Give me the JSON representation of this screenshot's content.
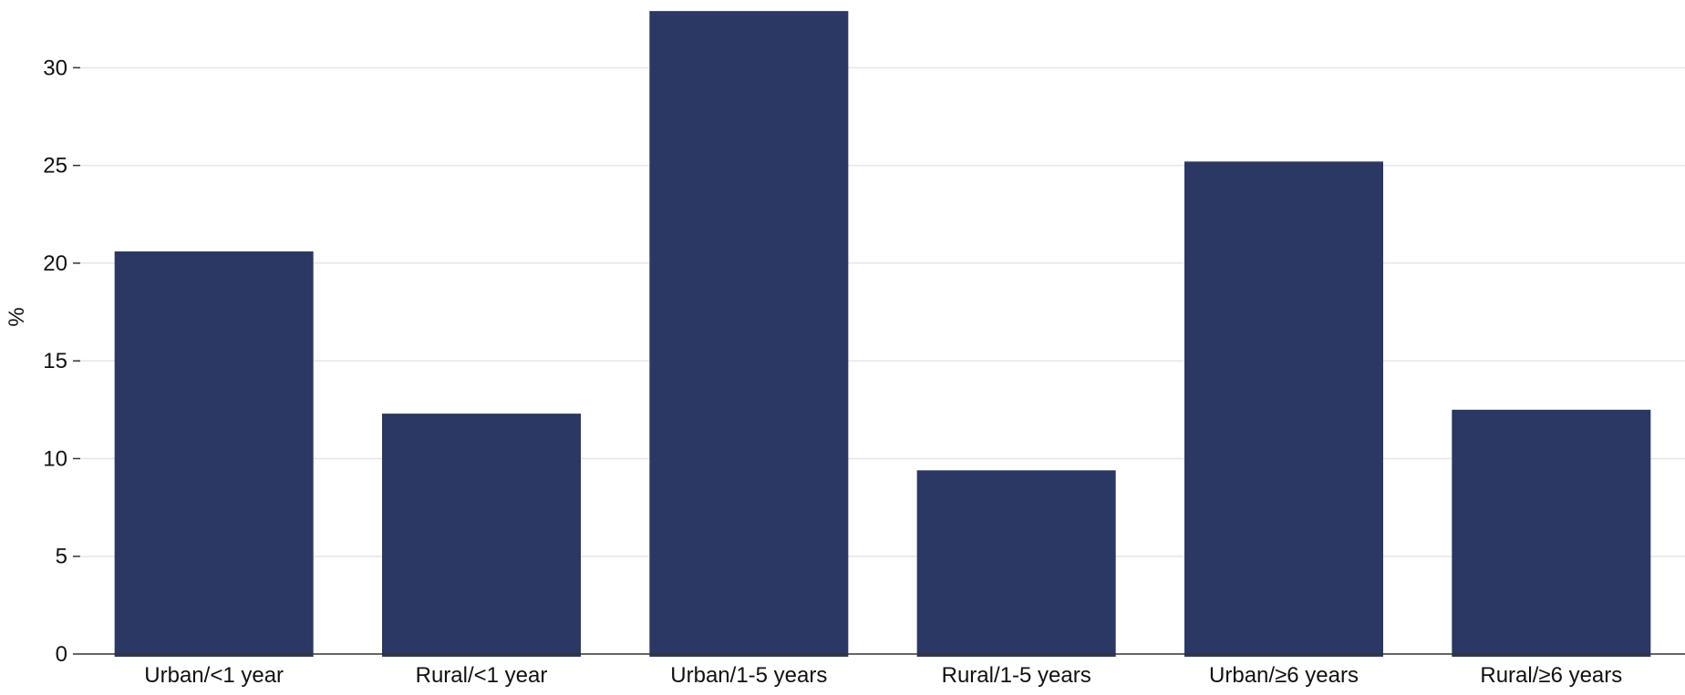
{
  "chart_data": {
    "type": "bar",
    "title": "",
    "xlabel": "",
    "ylabel": "%",
    "categories": [
      "Urban/<1 year",
      "Rural/<1 year",
      "Urban/1-5 years",
      "Rural/1-5 years",
      "Urban/≥6 years",
      "Rural/≥6 years"
    ],
    "values": [
      20.6,
      12.3,
      32.9,
      9.4,
      25.2,
      12.5
    ],
    "ylim": [
      0,
      33
    ],
    "yticks": [
      0,
      5,
      10,
      15,
      20,
      25,
      30
    ],
    "grid": true,
    "legend": "none",
    "bar_color": "#2b3864"
  }
}
